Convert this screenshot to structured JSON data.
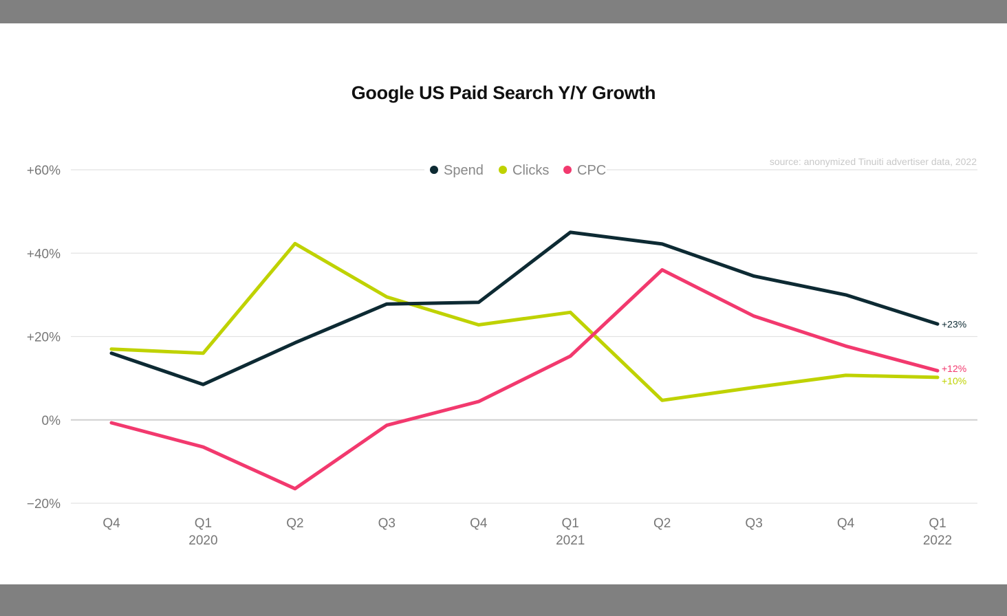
{
  "chart_data": {
    "type": "line",
    "title": "Google US Paid Search Y/Y Growth",
    "source": "source: anonymized Tinuiti advertiser data, 2022",
    "categories": [
      "Q4",
      "Q1",
      "Q2",
      "Q3",
      "Q4",
      "Q1",
      "Q2",
      "Q3",
      "Q4",
      "Q1"
    ],
    "category_years": [
      "",
      "2020",
      "",
      "",
      "",
      "2021",
      "",
      "",
      "",
      "2022"
    ],
    "ylim": [
      -20,
      60
    ],
    "yticks": [
      -20,
      0,
      20,
      40,
      60
    ],
    "ytick_labels": [
      "−20%",
      "0%",
      "+20%",
      "+40%",
      "+60%"
    ],
    "grid": true,
    "legend_position": "top-center",
    "series": [
      {
        "name": "Spend",
        "color": "#0d2a33",
        "values": [
          16,
          8.5,
          18.5,
          27.8,
          28.2,
          45,
          42.2,
          34.5,
          30,
          23
        ],
        "end_label": "+23%"
      },
      {
        "name": "Clicks",
        "color": "#bfd200",
        "values": [
          17,
          16,
          42.3,
          29.5,
          22.8,
          25.8,
          4.7,
          7.8,
          10.7,
          10.2
        ],
        "end_label": "+10%"
      },
      {
        "name": "CPC",
        "color": "#f2396e",
        "values": [
          -0.7,
          -6.5,
          -16.5,
          -1.3,
          4.4,
          15.3,
          36,
          24.9,
          17.7,
          11.8
        ],
        "end_label": "+12%"
      }
    ]
  }
}
